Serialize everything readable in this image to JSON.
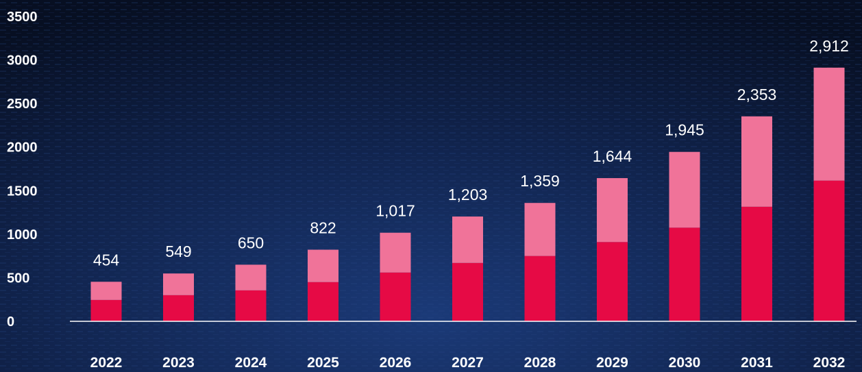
{
  "chart_data": {
    "type": "bar",
    "stacked": true,
    "categories": [
      "2022",
      "2023",
      "2024",
      "2025",
      "2026",
      "2027",
      "2028",
      "2029",
      "2030",
      "2031",
      "2032"
    ],
    "series": [
      {
        "values": [
          245,
          300,
          355,
          450,
          560,
          670,
          750,
          910,
          1075,
          1315,
          1615
        ]
      },
      {
        "values": [
          209,
          249,
          295,
          372,
          457,
          533,
          609,
          734,
          870,
          1038,
          1297
        ]
      }
    ],
    "totals": [
      454,
      549,
      650,
      822,
      1017,
      1203,
      1359,
      1644,
      1945,
      2353,
      2912
    ],
    "total_labels": [
      "454",
      "549",
      "650",
      "822",
      "1,017",
      "1,203",
      "1,359",
      "1,644",
      "1,945",
      "2,353",
      "2,912"
    ],
    "y_ticks": [
      0,
      500,
      1000,
      1500,
      2000,
      2500,
      3000,
      3500
    ],
    "y_tick_labels": [
      "0",
      "500",
      "1000",
      "1500",
      "2000",
      "2500",
      "3000",
      "3500"
    ],
    "ylim": [
      0,
      3500
    ],
    "grid": false,
    "legend": "none",
    "colors": {
      "background": "#0b1630",
      "series_bottom": "#e60a45",
      "series_top": "#f07399",
      "axis": "#ffffff",
      "text": "#ffffff"
    }
  }
}
